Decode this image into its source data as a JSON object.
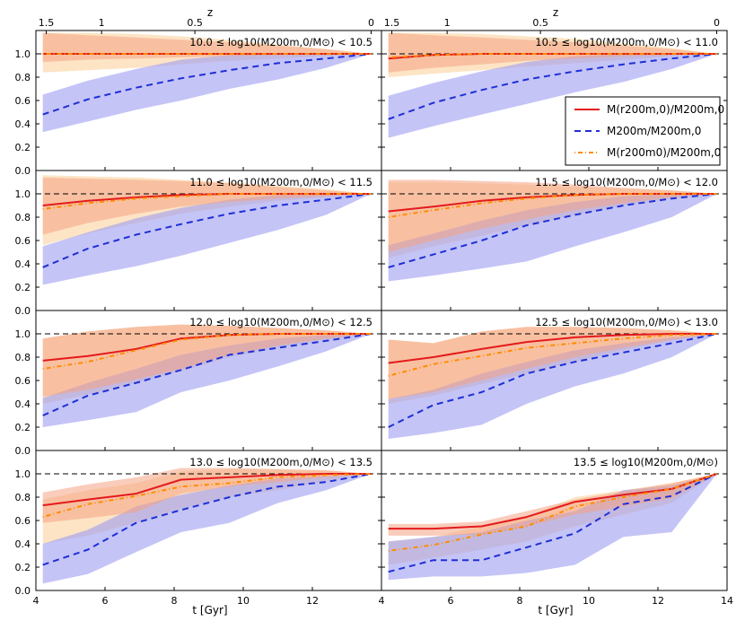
{
  "chart_data": {
    "type": "line",
    "xlabel": "t [Gyr]",
    "x_ticks": [
      "4",
      "6",
      "8",
      "10",
      "12",
      "14"
    ],
    "xlim": [
      4,
      14
    ],
    "top_axis_label": "z",
    "z_ticks": [
      {
        "label": "1.5",
        "t": 4.3
      },
      {
        "label": "1",
        "t": 5.9
      },
      {
        "label": "0.5",
        "t": 8.6
      },
      {
        "label": "0",
        "t": 13.7
      }
    ],
    "ylim": [
      0,
      1.2
    ],
    "y_ticks": [
      "0.0",
      "0.2",
      "0.4",
      "0.6",
      "0.8",
      "1.0"
    ],
    "colors": {
      "red": "#e41a1c",
      "blue": "#1f2fd6",
      "orange": "#ff8c00",
      "red_band": "#f4a383",
      "orange_band": "#fbd6a6",
      "blue_band": "#9d9cf2"
    },
    "legend": {
      "location": "upper-right of right panel, second row",
      "entries": [
        {
          "series": "red",
          "label": "M(r200m,0)/M200m,0"
        },
        {
          "series": "blue",
          "label": "M200m/M200m,0"
        },
        {
          "series": "orange",
          "label": "M(r200m0)/M200m,0"
        }
      ]
    },
    "x": [
      4.2,
      5.5,
      6.9,
      8.2,
      9.6,
      11.0,
      12.4,
      13.7
    ],
    "panels": [
      {
        "title": "10.0 ≤ log10(M200m,0/M⊙) < 10.5",
        "series": {
          "red": [
            1.0,
            1.0,
            1.0,
            1.0,
            1.0,
            1.0,
            1.0,
            1.0
          ],
          "blue": [
            0.48,
            0.61,
            0.71,
            0.79,
            0.86,
            0.92,
            0.96,
            1.0
          ],
          "orange": [
            1.0,
            1.0,
            1.0,
            1.0,
            1.0,
            1.0,
            1.0,
            1.0
          ],
          "red_band_lo": [
            0.93,
            0.95,
            0.96,
            0.97,
            0.98,
            0.99,
            0.99,
            1.0
          ],
          "red_band_hi": [
            1.18,
            1.16,
            1.14,
            1.12,
            1.1,
            1.07,
            1.04,
            1.0
          ],
          "orange_band_lo": [
            0.84,
            0.86,
            0.88,
            0.91,
            0.94,
            0.96,
            0.98,
            1.0
          ],
          "orange_band_hi": [
            1.18,
            1.18,
            1.17,
            1.15,
            1.12,
            1.08,
            1.04,
            1.0
          ],
          "blue_band_lo": [
            0.33,
            0.42,
            0.52,
            0.6,
            0.7,
            0.78,
            0.88,
            1.0
          ],
          "blue_band_hi": [
            0.65,
            0.77,
            0.87,
            0.95,
            0.99,
            1.0,
            1.0,
            1.0
          ]
        }
      },
      {
        "title": "10.5 ≤ log10(M200m,0/M⊙) < 11.0",
        "series": {
          "red": [
            0.96,
            0.99,
            1.0,
            1.0,
            1.0,
            1.0,
            1.0,
            1.0
          ],
          "blue": [
            0.44,
            0.58,
            0.69,
            0.78,
            0.85,
            0.91,
            0.96,
            1.0
          ],
          "orange": [
            0.97,
            0.99,
            1.0,
            1.0,
            1.0,
            1.0,
            1.0,
            1.0
          ],
          "red_band_lo": [
            0.84,
            0.88,
            0.91,
            0.94,
            0.96,
            0.98,
            0.99,
            1.0
          ],
          "red_band_hi": [
            1.18,
            1.16,
            1.14,
            1.12,
            1.1,
            1.07,
            1.04,
            1.0
          ],
          "orange_band_lo": [
            0.8,
            0.83,
            0.86,
            0.89,
            0.92,
            0.95,
            0.98,
            1.0
          ],
          "orange_band_hi": [
            1.18,
            1.18,
            1.17,
            1.15,
            1.13,
            1.09,
            1.05,
            1.0
          ],
          "blue_band_lo": [
            0.28,
            0.38,
            0.48,
            0.57,
            0.67,
            0.76,
            0.87,
            1.0
          ],
          "blue_band_hi": [
            0.64,
            0.75,
            0.85,
            0.93,
            0.98,
            1.0,
            1.0,
            1.0
          ]
        }
      },
      {
        "title": "11.0 ≤ log10(M200m,0/M⊙) < 11.5",
        "series": {
          "red": [
            0.9,
            0.94,
            0.97,
            0.99,
            1.0,
            1.0,
            1.0,
            1.0
          ],
          "blue": [
            0.37,
            0.53,
            0.65,
            0.74,
            0.83,
            0.9,
            0.95,
            1.0
          ],
          "orange": [
            0.87,
            0.92,
            0.96,
            0.98,
            1.0,
            1.0,
            1.0,
            1.0
          ],
          "red_band_lo": [
            0.65,
            0.75,
            0.83,
            0.89,
            0.93,
            0.96,
            0.98,
            1.0
          ],
          "red_band_hi": [
            1.14,
            1.13,
            1.12,
            1.11,
            1.09,
            1.06,
            1.03,
            1.0
          ],
          "orange_band_lo": [
            0.56,
            0.66,
            0.75,
            0.83,
            0.89,
            0.94,
            0.97,
            1.0
          ],
          "orange_band_hi": [
            1.16,
            1.15,
            1.14,
            1.12,
            1.1,
            1.07,
            1.04,
            1.0
          ],
          "blue_band_lo": [
            0.22,
            0.3,
            0.38,
            0.47,
            0.58,
            0.69,
            0.82,
            1.0
          ],
          "blue_band_hi": [
            0.55,
            0.67,
            0.79,
            0.88,
            0.95,
            0.99,
            1.0,
            1.0
          ]
        }
      },
      {
        "title": "11.5 ≤ log10(M200m,0/M⊙) < 12.0",
        "series": {
          "red": [
            0.85,
            0.89,
            0.94,
            0.97,
            0.99,
            1.0,
            1.0,
            1.0
          ],
          "blue": [
            0.37,
            0.48,
            0.6,
            0.73,
            0.82,
            0.9,
            0.96,
            1.0
          ],
          "orange": [
            0.8,
            0.86,
            0.92,
            0.96,
            0.99,
            1.0,
            1.0,
            1.0
          ],
          "red_band_lo": [
            0.5,
            0.6,
            0.7,
            0.78,
            0.86,
            0.92,
            0.97,
            1.0
          ],
          "red_band_hi": [
            1.12,
            1.12,
            1.11,
            1.1,
            1.08,
            1.05,
            1.03,
            1.0
          ],
          "orange_band_lo": [
            0.45,
            0.55,
            0.64,
            0.73,
            0.82,
            0.9,
            0.96,
            1.0
          ],
          "orange_band_hi": [
            1.1,
            1.1,
            1.09,
            1.08,
            1.06,
            1.05,
            1.03,
            1.0
          ],
          "blue_band_lo": [
            0.25,
            0.3,
            0.36,
            0.42,
            0.55,
            0.67,
            0.8,
            1.0
          ],
          "blue_band_hi": [
            0.56,
            0.66,
            0.77,
            0.86,
            0.93,
            0.98,
            1.0,
            1.0
          ]
        }
      },
      {
        "title": "12.0 ≤ log10(M200m,0/M⊙) < 12.5",
        "series": {
          "red": [
            0.77,
            0.81,
            0.87,
            0.96,
            0.99,
            1.0,
            1.0,
            1.0
          ],
          "blue": [
            0.3,
            0.47,
            0.58,
            0.69,
            0.82,
            0.88,
            0.94,
            1.0
          ],
          "orange": [
            0.7,
            0.76,
            0.86,
            0.95,
            0.99,
            1.0,
            1.0,
            1.0
          ],
          "red_band_lo": [
            0.46,
            0.52,
            0.61,
            0.7,
            0.82,
            0.9,
            0.96,
            1.0
          ],
          "red_band_hi": [
            0.96,
            1.02,
            1.06,
            1.08,
            1.07,
            1.05,
            1.03,
            1.0
          ],
          "orange_band_lo": [
            0.4,
            0.48,
            0.58,
            0.68,
            0.8,
            0.88,
            0.95,
            1.0
          ],
          "orange_band_hi": [
            0.96,
            1.02,
            1.06,
            1.08,
            1.07,
            1.05,
            1.03,
            1.0
          ],
          "blue_band_lo": [
            0.2,
            0.26,
            0.33,
            0.5,
            0.6,
            0.72,
            0.85,
            1.0
          ],
          "blue_band_hi": [
            0.45,
            0.58,
            0.7,
            0.82,
            0.9,
            0.96,
            0.99,
            1.0
          ]
        }
      },
      {
        "title": "12.5 ≤ log10(M200m,0/M⊙) < 13.0",
        "series": {
          "red": [
            0.75,
            0.8,
            0.87,
            0.93,
            0.97,
            0.99,
            1.0,
            1.0
          ],
          "blue": [
            0.2,
            0.39,
            0.5,
            0.66,
            0.76,
            0.84,
            0.92,
            1.0
          ],
          "orange": [
            0.64,
            0.74,
            0.81,
            0.88,
            0.92,
            0.96,
            0.99,
            1.0
          ],
          "red_band_lo": [
            0.44,
            0.5,
            0.6,
            0.7,
            0.8,
            0.88,
            0.95,
            1.0
          ],
          "red_band_hi": [
            0.95,
            0.92,
            1.02,
            1.06,
            1.06,
            1.05,
            1.03,
            1.0
          ],
          "orange_band_lo": [
            0.4,
            0.47,
            0.57,
            0.66,
            0.76,
            0.86,
            0.94,
            1.0
          ],
          "orange_band_hi": [
            0.95,
            0.92,
            1.02,
            1.06,
            1.06,
            1.05,
            1.03,
            1.0
          ],
          "blue_band_lo": [
            0.1,
            0.15,
            0.22,
            0.4,
            0.55,
            0.66,
            0.8,
            1.0
          ],
          "blue_band_hi": [
            0.44,
            0.52,
            0.66,
            0.76,
            0.86,
            0.92,
            0.97,
            1.0
          ]
        }
      },
      {
        "title": "13.0 ≤ log10(M200m,0/M⊙) < 13.5",
        "series": {
          "red": [
            0.73,
            0.78,
            0.83,
            0.95,
            0.97,
            0.99,
            1.0,
            1.0
          ],
          "blue": [
            0.22,
            0.35,
            0.58,
            0.69,
            0.8,
            0.89,
            0.93,
            1.0
          ],
          "orange": [
            0.63,
            0.74,
            0.81,
            0.89,
            0.92,
            0.97,
            0.99,
            1.0
          ],
          "red_band_lo": [
            0.58,
            0.62,
            0.67,
            0.83,
            0.89,
            0.93,
            0.97,
            1.0
          ],
          "red_band_hi": [
            0.84,
            0.91,
            0.97,
            1.05,
            1.05,
            1.04,
            1.03,
            1.0
          ],
          "orange_band_lo": [
            0.4,
            0.47,
            0.58,
            0.7,
            0.8,
            0.86,
            0.94,
            1.0
          ],
          "orange_band_hi": [
            0.78,
            0.86,
            0.92,
            1.02,
            1.04,
            1.04,
            1.03,
            1.0
          ],
          "blue_band_lo": [
            0.06,
            0.14,
            0.33,
            0.5,
            0.58,
            0.75,
            0.86,
            1.0
          ],
          "blue_band_hi": [
            0.4,
            0.52,
            0.72,
            0.82,
            0.9,
            0.96,
            0.98,
            1.0
          ]
        }
      },
      {
        "title": "13.5 ≤ log10(M200m,0/M⊙)",
        "series": {
          "red": [
            0.53,
            0.53,
            0.55,
            0.63,
            0.76,
            0.82,
            0.87,
            1.0
          ],
          "blue": [
            0.16,
            0.26,
            0.26,
            0.37,
            0.49,
            0.74,
            0.81,
            1.0
          ],
          "orange": [
            0.34,
            0.39,
            0.48,
            0.55,
            0.72,
            0.8,
            0.87,
            1.0
          ],
          "red_band_lo": [
            0.47,
            0.47,
            0.48,
            0.55,
            0.65,
            0.72,
            0.79,
            1.0
          ],
          "red_band_hi": [
            0.57,
            0.57,
            0.59,
            0.68,
            0.78,
            0.85,
            0.92,
            1.0
          ],
          "orange_band_lo": [
            0.22,
            0.28,
            0.35,
            0.42,
            0.55,
            0.65,
            0.75,
            1.0
          ],
          "orange_band_hi": [
            0.42,
            0.46,
            0.55,
            0.63,
            0.8,
            0.86,
            0.92,
            1.0
          ],
          "blue_band_lo": [
            0.09,
            0.12,
            0.12,
            0.15,
            0.22,
            0.46,
            0.5,
            1.0
          ],
          "blue_band_hi": [
            0.42,
            0.46,
            0.5,
            0.6,
            0.68,
            0.86,
            0.9,
            1.0
          ]
        }
      }
    ]
  }
}
